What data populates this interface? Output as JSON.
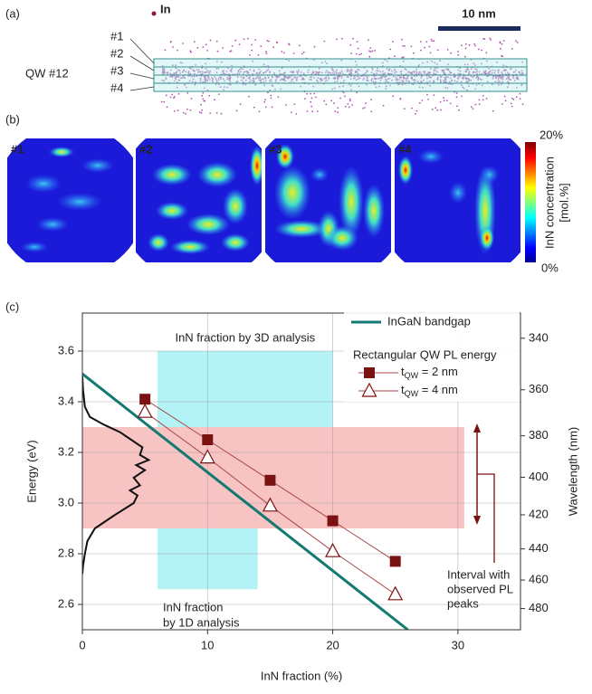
{
  "panel_a": {
    "panel_label": "(a)",
    "legend_label": "In",
    "scale_bar": "10 nm",
    "sample_label": "QW #12",
    "layer_labels": [
      "#1",
      "#2",
      "#3",
      "#4"
    ]
  },
  "panel_b": {
    "panel_label": "(b)",
    "map_labels": [
      "#1",
      "#2",
      "#3",
      "#4"
    ],
    "colorbar_max": "20%",
    "colorbar_min": "0%",
    "colorbar_title": [
      "InN concentration",
      "[mol.%]"
    ]
  },
  "chart_data": {
    "type": "line",
    "panel_label": "(c)",
    "x_label": "InN fraction (%)",
    "y_label": "Energy (eV)",
    "y2_label": "Wavelength (nm)",
    "xlim": [
      0,
      35
    ],
    "xticks": [
      0,
      10,
      20,
      30
    ],
    "ylim": [
      2.5,
      3.75
    ],
    "yticks": [
      2.6,
      2.8,
      {
        "value": 3,
        "label": "3.0"
      },
      3.2,
      3.4,
      3.6
    ],
    "y2lim": [
      496,
      331
    ],
    "y2scale": "reciprocal",
    "y2ticks": [
      340,
      360,
      380,
      400,
      420,
      440,
      460,
      480
    ],
    "grid": true,
    "legend_title": "Rectangular QW PL energy",
    "series": [
      {
        "name": "InGaN bandgap",
        "color": "#137a72",
        "marker": "none",
        "width": 3,
        "x": [
          0,
          26
        ],
        "values": [
          3.51,
          2.5
        ]
      },
      {
        "name": [
          "t",
          "QW",
          " = 2 nm"
        ],
        "color": "#7a1212",
        "marker": "square",
        "width": 1,
        "x": [
          5,
          10,
          15,
          20,
          25
        ],
        "values": [
          3.41,
          3.25,
          3.09,
          2.93,
          2.77
        ]
      },
      {
        "name": [
          "t",
          "QW",
          " = 4 nm"
        ],
        "color": "#7a1212",
        "marker": "triangle-open",
        "width": 1,
        "x": [
          5,
          10,
          15,
          20,
          25
        ],
        "values": [
          3.36,
          3.18,
          2.99,
          2.81,
          2.64
        ]
      },
      {
        "color": "#111111",
        "marker": "none",
        "width": 2,
        "x": [
          0,
          0.05,
          0.2,
          0.4,
          1.0,
          2.5,
          4.1,
          4.4,
          3.8,
          4.6,
          4.1,
          5.0,
          4.3,
          5.3,
          4.6,
          4.8,
          3.9,
          3.0,
          1.7,
          0.6,
          0.2,
          0.05,
          0
        ],
        "values": [
          2.72,
          2.75,
          2.8,
          2.85,
          2.9,
          2.95,
          3.0,
          3.03,
          3.05,
          3.07,
          3.1,
          3.13,
          3.15,
          3.17,
          3.19,
          3.22,
          3.25,
          3.28,
          3.31,
          3.34,
          3.38,
          3.45,
          3.5
        ]
      }
    ],
    "regions": [
      {
        "x": [
          6,
          20
        ],
        "y": [
          3.3,
          3.6
        ],
        "color": "#a6f1f4",
        "label": [
          "InN fraction by 3D analysis"
        ]
      },
      {
        "x": [
          6,
          14
        ],
        "y": [
          2.66,
          2.9
        ],
        "color": "#a6f1f4",
        "label": [
          "InN fraction",
          "by 1D analysis"
        ]
      },
      {
        "x": [
          0,
          30.5
        ],
        "y": [
          2.9,
          3.3
        ],
        "color": "#f6b9b9"
      }
    ],
    "annotation": [
      "Interval with",
      "observed PL",
      "peaks"
    ]
  }
}
